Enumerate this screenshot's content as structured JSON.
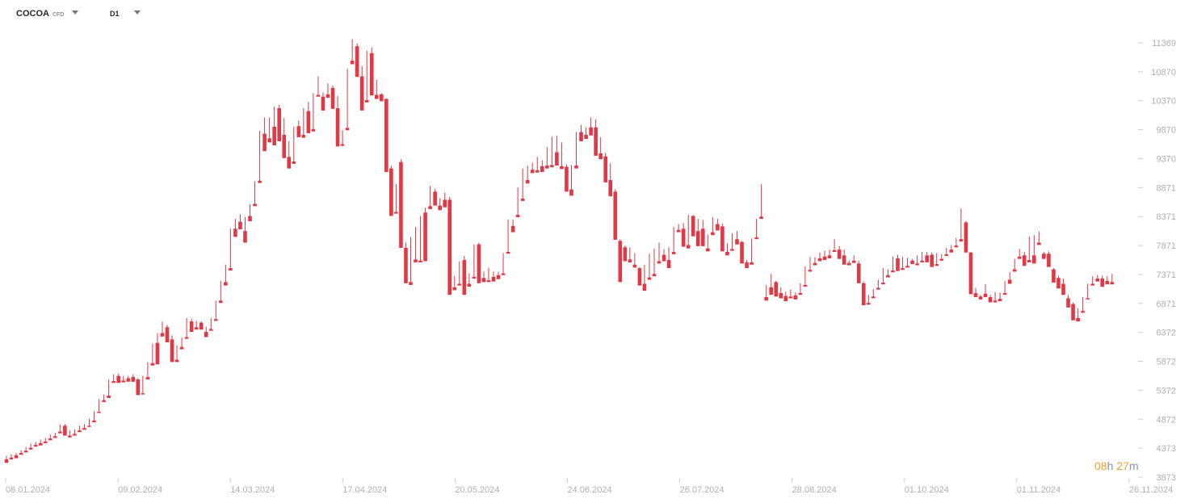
{
  "toolbar": {
    "symbol": "COCOA",
    "symbol_type": "CFD",
    "timeframe": "D1"
  },
  "countdown": {
    "hours": "08",
    "h_unit": "h",
    "minutes": "27",
    "m_unit": "m"
  },
  "colors": {
    "up": "#1f9d6a",
    "down": "#e23744",
    "axis_text": "#aab0bb",
    "tick": "#c9cdd4"
  },
  "chart_data": {
    "type": "candlestick",
    "y_ticks": [
      "11369",
      "10870",
      "10370",
      "9870",
      "9370",
      "8871",
      "8371",
      "7871",
      "7371",
      "6871",
      "6372",
      "5872",
      "5372",
      "4872",
      "4373",
      "3873"
    ],
    "x_ticks": [
      "08.01.2024",
      "09.02.2024",
      "14.03.2024",
      "17.04.2024",
      "20.05.2024",
      "24.06.2024",
      "26.07.2024",
      "28.08.2024",
      "01.10.2024",
      "01.11.2024",
      "26.11.2024"
    ],
    "ylim": [
      3873,
      11369
    ],
    "grid": false,
    "candles": [
      [
        4180,
        4240,
        4140,
        4120
      ],
      [
        4210,
        4270,
        4180,
        4180
      ],
      [
        4250,
        4290,
        4220,
        4200
      ],
      [
        4290,
        4340,
        4270,
        4260
      ],
      [
        4330,
        4390,
        4310,
        4300
      ],
      [
        4380,
        4450,
        4360,
        4350
      ],
      [
        4430,
        4480,
        4400,
        4400
      ],
      [
        4460,
        4520,
        4440,
        4420
      ],
      [
        4490,
        4550,
        4470,
        4460
      ],
      [
        4540,
        4610,
        4520,
        4510
      ],
      [
        4580,
        4640,
        4560,
        4550
      ],
      [
        4660,
        4780,
        4640,
        4630
      ],
      [
        4760,
        4790,
        4600,
        4590
      ],
      [
        4590,
        4680,
        4570,
        4560
      ],
      [
        4620,
        4700,
        4600,
        4590
      ],
      [
        4680,
        4760,
        4660,
        4650
      ],
      [
        4720,
        4790,
        4700,
        4690
      ],
      [
        4760,
        4880,
        4740,
        4740
      ],
      [
        4850,
        5010,
        4830,
        4820
      ],
      [
        5000,
        5220,
        4980,
        4980
      ],
      [
        5200,
        5300,
        5180,
        5170
      ],
      [
        5280,
        5560,
        5250,
        5240
      ],
      [
        5530,
        5650,
        5510,
        5500
      ],
      [
        5620,
        5660,
        5520,
        5500
      ],
      [
        5540,
        5620,
        5520,
        5510
      ],
      [
        5580,
        5620,
        5540,
        5520
      ],
      [
        5600,
        5650,
        5520,
        5520
      ],
      [
        5560,
        5580,
        5300,
        5290
      ],
      [
        5320,
        5620,
        5310,
        5300
      ],
      [
        5600,
        5860,
        5580,
        5560
      ],
      [
        5840,
        6180,
        5820,
        5800
      ],
      [
        6190,
        6360,
        5840,
        5820
      ],
      [
        6360,
        6560,
        6320,
        6300
      ],
      [
        6460,
        6500,
        6260,
        6200
      ],
      [
        6250,
        6320,
        5870,
        5860
      ],
      [
        5900,
        6150,
        5880,
        5860
      ],
      [
        6120,
        6280,
        6100,
        6080
      ],
      [
        6290,
        6620,
        6270,
        6260
      ],
      [
        6560,
        6610,
        6400,
        6380
      ],
      [
        6460,
        6570,
        6440,
        6420
      ],
      [
        6540,
        6560,
        6420,
        6420
      ],
      [
        6380,
        6470,
        6340,
        6290
      ],
      [
        6430,
        6620,
        6410,
        6400
      ],
      [
        6600,
        6920,
        6580,
        6570
      ],
      [
        6920,
        7260,
        6900,
        6880
      ],
      [
        7240,
        7540,
        7200,
        7180
      ],
      [
        7480,
        8160,
        7460,
        7440
      ],
      [
        8160,
        8330,
        8140,
        8020
      ],
      [
        8280,
        8410,
        8190,
        8150
      ],
      [
        8120,
        8360,
        7980,
        7920
      ],
      [
        8380,
        8580,
        8310,
        8290
      ],
      [
        8590,
        8980,
        8570,
        8550
      ],
      [
        8990,
        9850,
        8960,
        8950
      ],
      [
        9800,
        10080,
        9680,
        9500
      ],
      [
        9720,
        10080,
        9680,
        9650
      ],
      [
        9920,
        10270,
        9880,
        9600
      ],
      [
        10240,
        10300,
        9780,
        9670
      ],
      [
        9780,
        10070,
        9750,
        9380
      ],
      [
        9400,
        9670,
        9360,
        9200
      ],
      [
        9320,
        9920,
        9300,
        9280
      ],
      [
        9930,
        10030,
        9790,
        9740
      ],
      [
        9780,
        10240,
        9740,
        9730
      ],
      [
        10190,
        10350,
        9830,
        9810
      ],
      [
        9880,
        10500,
        9850,
        9840
      ],
      [
        10470,
        10790,
        10450,
        10440
      ],
      [
        10440,
        10510,
        10210,
        10200
      ],
      [
        10480,
        10670,
        10460,
        10420
      ],
      [
        10590,
        10630,
        10250,
        10230
      ],
      [
        10240,
        10450,
        9600,
        9580
      ],
      [
        9620,
        9860,
        9600,
        9590
      ],
      [
        9900,
        10920,
        9880,
        9860
      ],
      [
        11060,
        11430,
        11020,
        11000
      ],
      [
        11310,
        11360,
        10790,
        10780
      ],
      [
        10790,
        10970,
        10380,
        10200
      ],
      [
        10380,
        11230,
        10360,
        10340
      ],
      [
        11190,
        11290,
        10470,
        10460
      ],
      [
        10470,
        10730,
        10420,
        10400
      ],
      [
        10480,
        10500,
        10380,
        10360
      ],
      [
        10400,
        10410,
        9140,
        9140
      ],
      [
        9200,
        9250,
        8520,
        8380
      ],
      [
        8450,
        8930,
        8440,
        8420
      ],
      [
        9310,
        9360,
        7840,
        7830
      ],
      [
        7830,
        7920,
        7230,
        7220
      ],
      [
        7240,
        8020,
        7210,
        7190
      ],
      [
        7630,
        8190,
        7600,
        7580
      ],
      [
        7610,
        8380,
        7590,
        7580
      ],
      [
        8440,
        8520,
        7610,
        7600
      ],
      [
        8550,
        8900,
        8520,
        8500
      ],
      [
        8800,
        8850,
        8580,
        8560
      ],
      [
        8560,
        8690,
        8500,
        8480
      ],
      [
        8660,
        8780,
        8540,
        8530
      ],
      [
        8660,
        8710,
        7040,
        7020
      ],
      [
        7150,
        7350,
        7110,
        7100
      ],
      [
        7210,
        7600,
        7190,
        7180
      ],
      [
        7620,
        7690,
        7030,
        7020
      ],
      [
        7210,
        7390,
        7190,
        7160
      ],
      [
        7330,
        7890,
        7310,
        7300
      ],
      [
        7890,
        7920,
        7240,
        7220
      ],
      [
        7310,
        7420,
        7250,
        7240
      ],
      [
        7270,
        7490,
        7250,
        7240
      ],
      [
        7330,
        7420,
        7260,
        7250
      ],
      [
        7360,
        7420,
        7300,
        7290
      ],
      [
        7390,
        7740,
        7370,
        7360
      ],
      [
        7760,
        8320,
        7740,
        7730
      ],
      [
        8210,
        8320,
        8130,
        8100
      ],
      [
        8400,
        8870,
        8380,
        8360
      ],
      [
        8680,
        9200,
        8660,
        8640
      ],
      [
        9000,
        9250,
        8970,
        8940
      ],
      [
        9180,
        9300,
        9150,
        9120
      ],
      [
        9170,
        9400,
        9140,
        9130
      ],
      [
        9240,
        9340,
        9160,
        9140
      ],
      [
        9250,
        9570,
        9230,
        9200
      ],
      [
        9260,
        9750,
        9240,
        9220
      ],
      [
        9480,
        9760,
        9290,
        9250
      ],
      [
        9240,
        9650,
        9210,
        9190
      ],
      [
        9230,
        9270,
        8840,
        8800
      ],
      [
        8840,
        9260,
        8820,
        8730
      ],
      [
        9250,
        9830,
        9220,
        9200
      ],
      [
        9830,
        9950,
        9690,
        9670
      ],
      [
        9780,
        9910,
        9720,
        9710
      ],
      [
        9910,
        10080,
        9890,
        9770
      ],
      [
        9910,
        10050,
        9460,
        9420
      ],
      [
        9460,
        9740,
        9370,
        9360
      ],
      [
        9410,
        9470,
        8990,
        8960
      ],
      [
        9000,
        9290,
        8800,
        8720
      ],
      [
        8800,
        8840,
        7990,
        7970
      ],
      [
        7950,
        7980,
        7850,
        7240
      ],
      [
        7840,
        7870,
        7620,
        7600
      ],
      [
        7630,
        7840,
        7620,
        7580
      ],
      [
        7540,
        7740,
        7500,
        7490
      ],
      [
        7480,
        7500,
        7210,
        7180
      ],
      [
        7210,
        7540,
        7180,
        7090
      ],
      [
        7320,
        7730,
        7300,
        7280
      ],
      [
        7380,
        7820,
        7350,
        7340
      ],
      [
        7600,
        7920,
        7580,
        7560
      ],
      [
        7710,
        7810,
        7620,
        7600
      ],
      [
        7620,
        7840,
        7600,
        7480
      ],
      [
        7760,
        8190,
        7740,
        7720
      ],
      [
        8140,
        8240,
        8120,
        8100
      ],
      [
        8160,
        8260,
        7860,
        7850
      ],
      [
        7880,
        8400,
        7860,
        7820
      ],
      [
        8380,
        8400,
        8060,
        8030
      ],
      [
        8120,
        8330,
        8100,
        7860
      ],
      [
        8160,
        8310,
        7880,
        7860
      ],
      [
        7820,
        8060,
        7790,
        7770
      ],
      [
        8100,
        8360,
        8080,
        8050
      ],
      [
        8240,
        8330,
        8150,
        8130
      ],
      [
        8200,
        8250,
        7780,
        7770
      ],
      [
        7760,
        7910,
        7740,
        7700
      ],
      [
        7810,
        8080,
        7790,
        7780
      ],
      [
        7980,
        8120,
        7910,
        7890
      ],
      [
        7930,
        7950,
        7590,
        7560
      ],
      [
        7580,
        7620,
        7520,
        7480
      ],
      [
        7580,
        7990,
        7560,
        7540
      ],
      [
        8010,
        8330,
        7990,
        7980
      ],
      [
        8370,
        8930,
        8340,
        8330
      ],
      [
        6980,
        7190,
        6960,
        6920
      ],
      [
        7150,
        7380,
        7120,
        7020
      ],
      [
        7240,
        7260,
        7000,
        6990
      ],
      [
        7050,
        7150,
        7030,
        6960
      ],
      [
        7000,
        7070,
        6940,
        6910
      ],
      [
        6990,
        7110,
        6970,
        6960
      ],
      [
        7010,
        7060,
        6960,
        6940
      ],
      [
        7050,
        7220,
        7030,
        7020
      ],
      [
        7190,
        7510,
        7170,
        7160
      ],
      [
        7450,
        7670,
        7430,
        7420
      ],
      [
        7570,
        7670,
        7550,
        7530
      ],
      [
        7650,
        7750,
        7620,
        7600
      ],
      [
        7680,
        7780,
        7660,
        7620
      ],
      [
        7700,
        7800,
        7660,
        7650
      ],
      [
        7790,
        7980,
        7770,
        7760
      ],
      [
        7800,
        7860,
        7650,
        7640
      ],
      [
        7700,
        7800,
        7560,
        7540
      ],
      [
        7570,
        7610,
        7540,
        7530
      ],
      [
        7610,
        7700,
        7590,
        7570
      ],
      [
        7560,
        7610,
        7230,
        7220
      ],
      [
        7220,
        7250,
        6850,
        6840
      ],
      [
        6880,
        7020,
        6860,
        6850
      ],
      [
        6990,
        7120,
        6970,
        6960
      ],
      [
        7140,
        7280,
        7120,
        7110
      ],
      [
        7230,
        7480,
        7210,
        7200
      ],
      [
        7360,
        7460,
        7330,
        7320
      ],
      [
        7440,
        7680,
        7420,
        7410
      ],
      [
        7650,
        7710,
        7440,
        7430
      ],
      [
        7480,
        7670,
        7460,
        7450
      ],
      [
        7520,
        7660,
        7500,
        7490
      ],
      [
        7610,
        7640,
        7560,
        7550
      ],
      [
        7560,
        7700,
        7540,
        7530
      ],
      [
        7610,
        7760,
        7590,
        7580
      ],
      [
        7700,
        7760,
        7600,
        7580
      ],
      [
        7710,
        7750,
        7520,
        7500
      ],
      [
        7550,
        7740,
        7530,
        7520
      ],
      [
        7640,
        7720,
        7620,
        7610
      ],
      [
        7720,
        7830,
        7700,
        7690
      ],
      [
        7800,
        7880,
        7760,
        7750
      ],
      [
        7870,
        8000,
        7850,
        7840
      ],
      [
        7980,
        8510,
        7950,
        7940
      ],
      [
        8270,
        8290,
        7760,
        7750
      ],
      [
        7750,
        7760,
        7040,
        7030
      ],
      [
        7050,
        7140,
        7000,
        6980
      ],
      [
        6990,
        7020,
        6950,
        6940
      ],
      [
        7040,
        7200,
        6990,
        6980
      ],
      [
        6980,
        7020,
        6910,
        6890
      ],
      [
        6920,
        7070,
        6900,
        6890
      ],
      [
        6950,
        7060,
        6930,
        6910
      ],
      [
        7050,
        7260,
        7030,
        7020
      ],
      [
        7280,
        7410,
        7220,
        7210
      ],
      [
        7460,
        7640,
        7440,
        7420
      ],
      [
        7680,
        7810,
        7650,
        7640
      ],
      [
        7700,
        7760,
        7530,
        7520
      ],
      [
        7620,
        8030,
        7600,
        7580
      ],
      [
        7700,
        8050,
        7680,
        7560
      ],
      [
        7920,
        8110,
        7900,
        7880
      ],
      [
        7730,
        7760,
        7650,
        7640
      ],
      [
        7730,
        7770,
        7510,
        7500
      ],
      [
        7460,
        7480,
        7250,
        7230
      ],
      [
        7310,
        7350,
        7140,
        7130
      ],
      [
        7210,
        7300,
        7030,
        7020
      ],
      [
        6960,
        7020,
        6820,
        6800
      ],
      [
        6860,
        6890,
        6610,
        6580
      ],
      [
        6620,
        6790,
        6600,
        6560
      ],
      [
        6740,
        6980,
        6720,
        6710
      ],
      [
        6960,
        7210,
        6950,
        6940
      ],
      [
        7210,
        7340,
        7190,
        7180
      ],
      [
        7300,
        7360,
        7260,
        7250
      ],
      [
        7300,
        7350,
        7170,
        7160
      ],
      [
        7260,
        7340,
        7240,
        7200
      ],
      [
        7240,
        7380,
        7220,
        7200
      ]
    ]
  }
}
